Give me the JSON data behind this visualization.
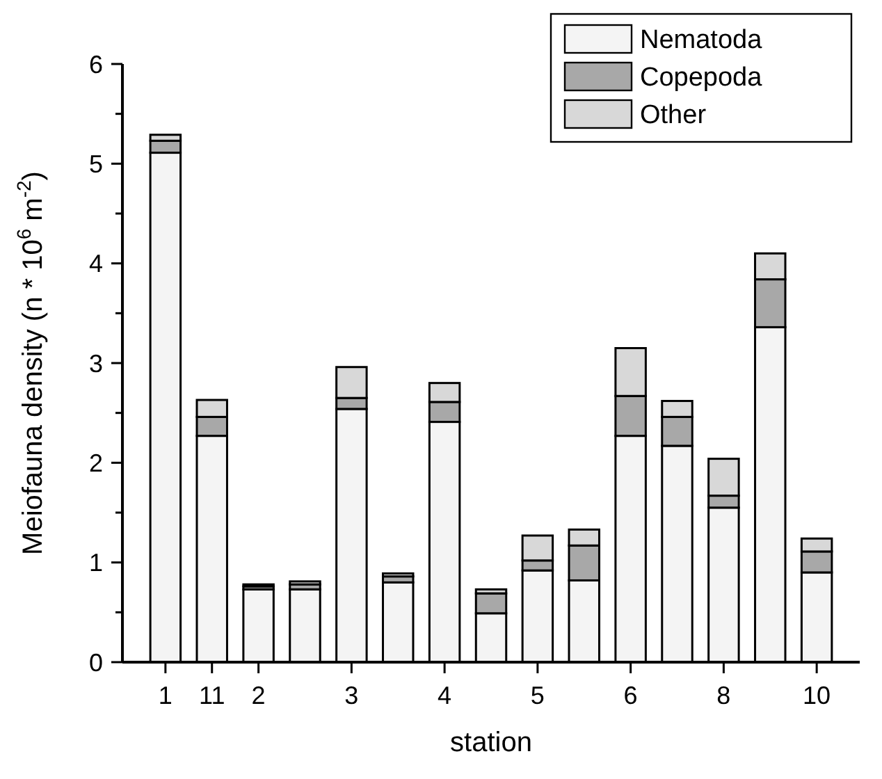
{
  "chart_data": {
    "type": "bar",
    "stacked": true,
    "xlabel": "station",
    "ylabel": "Meiofauna density (n * 10$^{6}$ m$^{-2}$)",
    "categories": [
      "1",
      "11",
      "2",
      null,
      "3",
      null,
      "4",
      null,
      "5",
      null,
      "6",
      null,
      "8",
      null,
      "10"
    ],
    "ylim": [
      0,
      6
    ],
    "yticks": [
      0,
      1,
      2,
      3,
      4,
      5,
      6
    ],
    "series": [
      {
        "name": "Nematoda",
        "color": "#f4f4f4",
        "values": [
          5.11,
          2.27,
          0.73,
          0.73,
          2.54,
          0.8,
          2.41,
          0.49,
          0.92,
          0.82,
          2.27,
          2.17,
          1.55,
          3.36,
          0.9
        ]
      },
      {
        "name": "Copepoda",
        "color": "#a8a8a8",
        "values": [
          0.12,
          0.19,
          0.03,
          0.05,
          0.11,
          0.06,
          0.2,
          0.2,
          0.1,
          0.35,
          0.4,
          0.29,
          0.12,
          0.48,
          0.21
        ]
      },
      {
        "name": "Other",
        "color": "#d8d8d8",
        "values": [
          0.06,
          0.17,
          0.02,
          0.03,
          0.31,
          0.03,
          0.19,
          0.04,
          0.25,
          0.16,
          0.48,
          0.16,
          0.37,
          0.26,
          0.13
        ]
      }
    ],
    "legend": "top right",
    "grid": false
  }
}
